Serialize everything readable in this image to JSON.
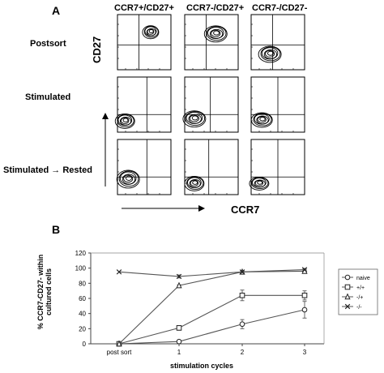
{
  "panel_a": {
    "letter": "A",
    "columns": [
      "CCR7+/CD27+",
      "CCR7-/CD27+",
      "CCR7-/CD27-"
    ],
    "rows": [
      "Postsort",
      "Stimulated",
      "Stimulated → Rested"
    ],
    "y_axis_label": "CD27",
    "x_axis_label": "CCR7"
  },
  "panel_b": {
    "letter": "B"
  },
  "chart_data": {
    "type": "line",
    "title": "",
    "xlabel": "stimulation cycles",
    "ylabel": "% CCR7-CD27- within cultured cells",
    "categories": [
      "post sort",
      "1",
      "2",
      "3"
    ],
    "ylim": [
      0,
      120
    ],
    "yticks": [
      0,
      20,
      40,
      60,
      80,
      100,
      120
    ],
    "grid": false,
    "legend_position": "right",
    "series": [
      {
        "name": "naive",
        "marker": "circle",
        "values": [
          0,
          3,
          26,
          45
        ],
        "errors": [
          0,
          1,
          6,
          11
        ]
      },
      {
        "name": "+/+",
        "marker": "square",
        "values": [
          0,
          21,
          64,
          64
        ],
        "errors": [
          0,
          3,
          7,
          6
        ]
      },
      {
        "name": "-/+",
        "marker": "triangle",
        "values": [
          0,
          77,
          95,
          96
        ],
        "errors": [
          0,
          1,
          2,
          2
        ]
      },
      {
        "name": "-/-",
        "marker": "x",
        "values": [
          95,
          89,
          95,
          98
        ],
        "errors": [
          0,
          2,
          1,
          1
        ]
      }
    ]
  }
}
